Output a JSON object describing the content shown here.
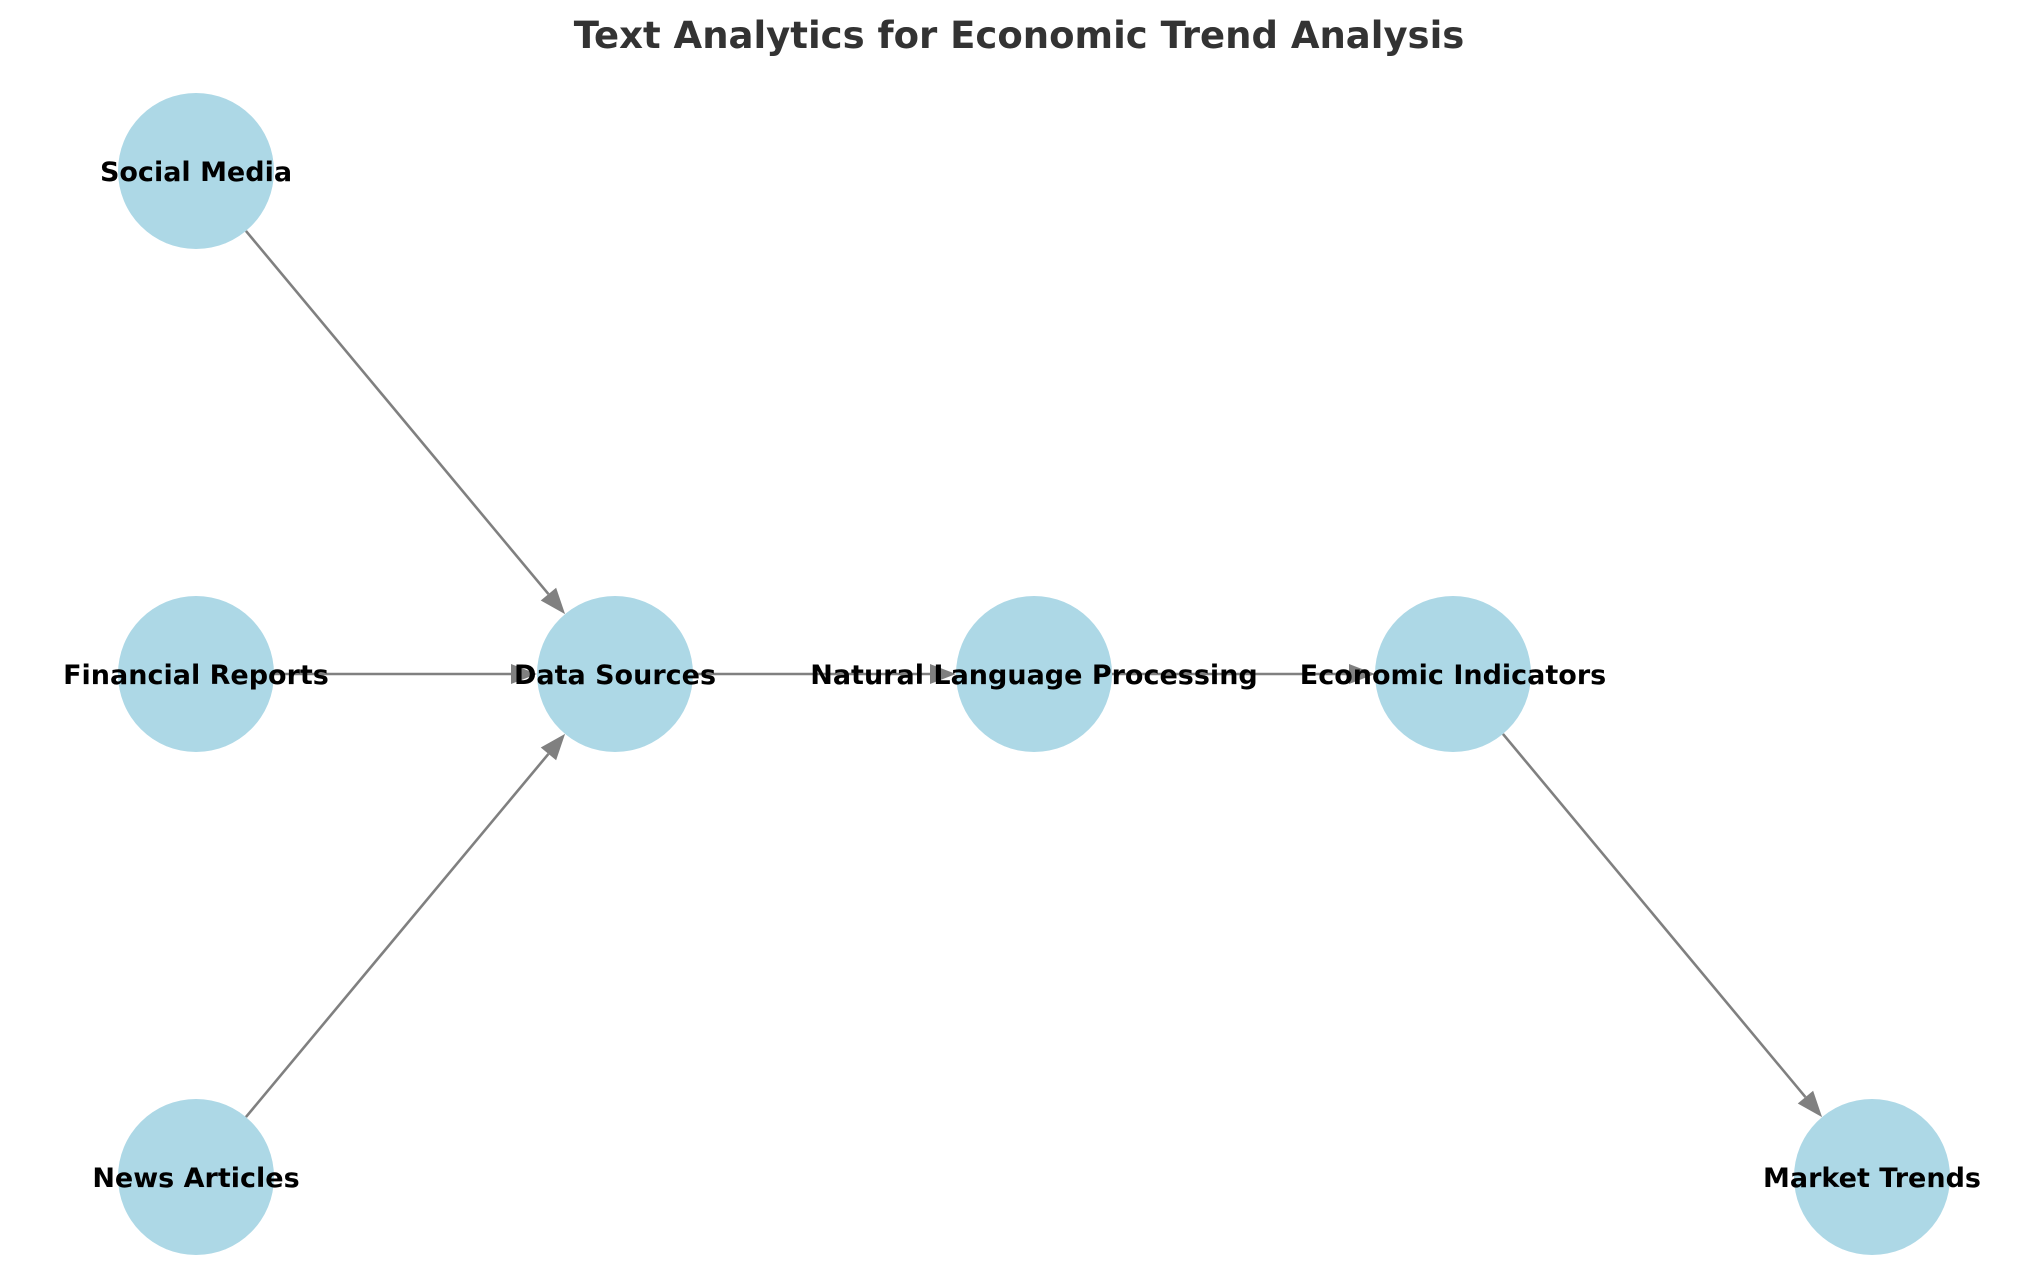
{
  "title": "Text Analytics for Economic Trend Analysis",
  "colors": {
    "node_fill": "#add8e6",
    "edge": "#808080",
    "title": "#333333",
    "label": "#000000",
    "background": "#ffffff"
  },
  "nodes": [
    {
      "id": "social_media",
      "label": "Social Media"
    },
    {
      "id": "financial_reports",
      "label": "Financial Reports"
    },
    {
      "id": "news_articles",
      "label": "News Articles"
    },
    {
      "id": "data_sources",
      "label": "Data Sources"
    },
    {
      "id": "nlp",
      "label": "Natural Language Processing"
    },
    {
      "id": "economic_indicators",
      "label": "Economic Indicators"
    },
    {
      "id": "market_trends",
      "label": "Market Trends"
    }
  ],
  "edges": [
    {
      "from": "social_media",
      "to": "data_sources"
    },
    {
      "from": "financial_reports",
      "to": "data_sources"
    },
    {
      "from": "news_articles",
      "to": "data_sources"
    },
    {
      "from": "data_sources",
      "to": "nlp"
    },
    {
      "from": "nlp",
      "to": "economic_indicators"
    },
    {
      "from": "economic_indicators",
      "to": "market_trends"
    }
  ]
}
